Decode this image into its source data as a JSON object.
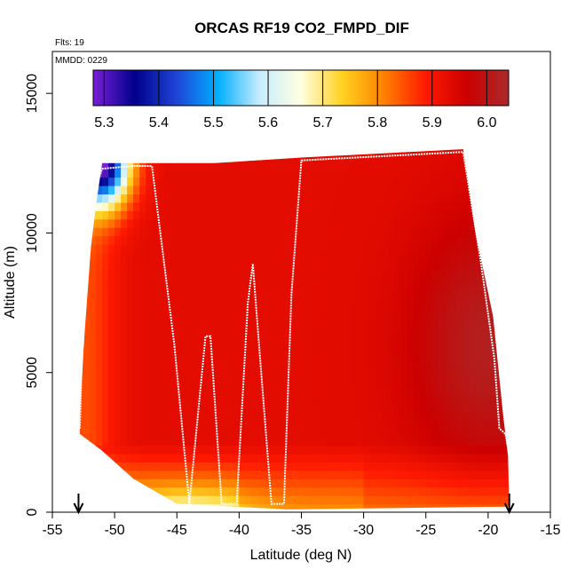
{
  "chart_data": {
    "type": "heatmap",
    "title": "ORCAS RF19 CO2_FMPD_DIF",
    "flights_note": "Flts: 19",
    "date_note": "MMDD: 0229",
    "xlabel": "Latitude (deg N)",
    "ylabel": "Altitude (m)",
    "xlim": [
      -55,
      -15
    ],
    "ylim": [
      0,
      16500
    ],
    "x_ticks": [
      "-55",
      "-50",
      "-45",
      "-40",
      "-35",
      "-30",
      "-25",
      "-20",
      "-15"
    ],
    "x_tick_values": [
      -55,
      -50,
      -45,
      -40,
      -35,
      -30,
      -25,
      -20,
      -15
    ],
    "y_ticks": [
      "0",
      "5000",
      "10000",
      "15000"
    ],
    "y_tick_values": [
      0,
      5000,
      10000,
      15000
    ],
    "colorbar": {
      "min": 5.28,
      "max": 6.04,
      "ticks": [
        "5.3",
        "5.4",
        "5.5",
        "5.6",
        "5.7",
        "5.8",
        "5.9",
        "6.0"
      ],
      "tick_values": [
        5.3,
        5.4,
        5.5,
        5.6,
        5.7,
        5.8,
        5.9,
        6.0
      ],
      "colors": [
        "#7a1fd6",
        "#00008b",
        "#1f44d6",
        "#00aeff",
        "#c8ecff",
        "#ffffe0",
        "#ffd21f",
        "#ff8000",
        "#ff1a00",
        "#cc0000",
        "#aa2a2a"
      ]
    },
    "region_outline": [
      [
        -52.8,
        2800
      ],
      [
        -52.8,
        3500
      ],
      [
        -52.4,
        6500
      ],
      [
        -51.9,
        9500
      ],
      [
        -51.5,
        11000
      ],
      [
        -51.0,
        12500
      ],
      [
        -42.0,
        12500
      ],
      [
        -35.0,
        12700
      ],
      [
        -22.0,
        13000
      ],
      [
        -21.0,
        10000
      ],
      [
        -19.6,
        7000
      ],
      [
        -18.8,
        3500
      ],
      [
        -18.4,
        2000
      ],
      [
        -18.3,
        200
      ],
      [
        -36.0,
        100
      ],
      [
        -45.0,
        300
      ],
      [
        -48.5,
        1200
      ],
      [
        -51.0,
        2200
      ]
    ],
    "field_description": "CO2 mixing ratio difference, mostly 5.85-6.0 with low values (~5.3-5.6) near the top-left corner and lighter values (~5.7-5.8) in the boundary layer",
    "flight_track": {
      "latitude": [
        -52.8,
        -52.6,
        -52.2,
        -51.8,
        -51.4,
        -51.0,
        -48.5,
        -47.0,
        -45.2,
        -44.0,
        -42.7,
        -42.3,
        -41.4,
        -40.2,
        -39.3,
        -38.9,
        -38.4,
        -37.4,
        -36.4,
        -35.8,
        -35.0,
        -22.0,
        -20.6,
        -19.5,
        -19.1,
        -18.6,
        -18.3,
        -18.2
      ],
      "altitude": [
        3000,
        6000,
        9000,
        10700,
        11800,
        12300,
        12400,
        12400,
        6000,
        300,
        6300,
        6300,
        300,
        300,
        7500,
        8900,
        6000,
        300,
        300,
        7800,
        12600,
        12900,
        9000,
        5500,
        3000,
        2800,
        2000,
        200
      ]
    },
    "arrows": [
      {
        "latitude": -52.9,
        "direction": "down"
      },
      {
        "latitude": -18.3,
        "direction": "down"
      }
    ]
  }
}
